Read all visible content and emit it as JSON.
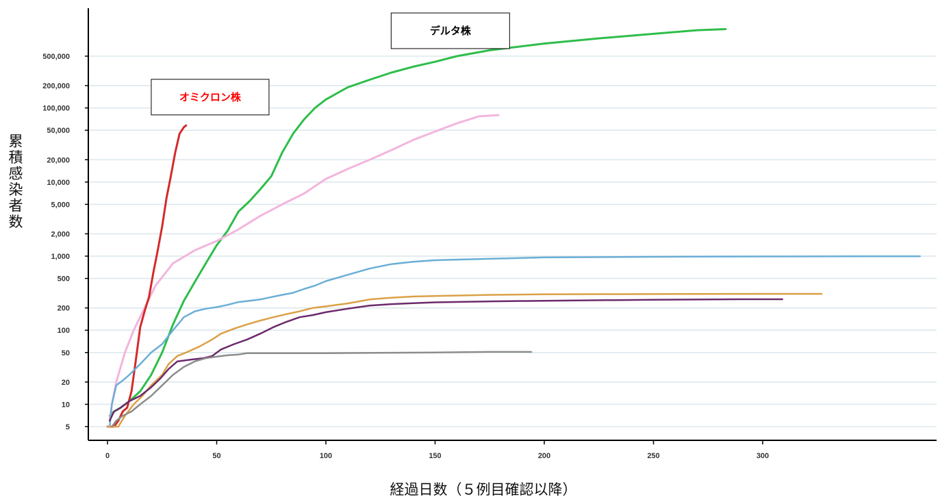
{
  "chart_data": {
    "type": "line",
    "xlabel": "経過日数（５例目確認以降）",
    "ylabel": "累積感染者数",
    "y_scale": "log",
    "xlim": [
      0,
      380
    ],
    "ylim": [
      3.5,
      1600000
    ],
    "grid": "horizontal",
    "x_ticks": [
      0,
      50,
      100,
      150,
      200,
      250,
      300
    ],
    "x_tick_labels": [
      "0",
      "50",
      "100",
      "150",
      "200",
      "250",
      "300"
    ],
    "y_ticks": [
      5,
      10,
      20,
      50,
      100,
      200,
      500,
      1000,
      2000,
      5000,
      10000,
      20000,
      50000,
      100000,
      200000,
      500000
    ],
    "y_tick_labels": [
      "5",
      "10",
      "20",
      "50",
      "100",
      "200",
      "500",
      "1,000",
      "2,000",
      "5,000",
      "10,000",
      "20,000",
      "50,000",
      "100,000",
      "200,000",
      "500,000"
    ],
    "annotations": [
      {
        "id": "delta",
        "text": "デルタ株",
        "color": "#000000",
        "anchor_x": 157,
        "anchor_y": 1100000
      },
      {
        "id": "omicron",
        "text": "オミクロン株",
        "color": "#ff0000",
        "anchor_x": 47,
        "anchor_y": 140000
      }
    ],
    "series": [
      {
        "color": "#2ebd4a",
        "width": 3,
        "points": [
          [
            1,
            7
          ],
          [
            3,
            8
          ],
          [
            6,
            9
          ],
          [
            10,
            11
          ],
          [
            15,
            15
          ],
          [
            20,
            25
          ],
          [
            25,
            50
          ],
          [
            30,
            120
          ],
          [
            35,
            250
          ],
          [
            40,
            450
          ],
          [
            45,
            800
          ],
          [
            50,
            1400
          ],
          [
            55,
            2200
          ],
          [
            60,
            4000
          ],
          [
            65,
            5500
          ],
          [
            70,
            8000
          ],
          [
            75,
            12000
          ],
          [
            80,
            25000
          ],
          [
            85,
            45000
          ],
          [
            90,
            70000
          ],
          [
            95,
            100000
          ],
          [
            100,
            130000
          ],
          [
            110,
            190000
          ],
          [
            120,
            240000
          ],
          [
            130,
            300000
          ],
          [
            140,
            360000
          ],
          [
            150,
            420000
          ],
          [
            160,
            500000
          ],
          [
            175,
            600000
          ],
          [
            200,
            740000
          ],
          [
            225,
            870000
          ],
          [
            250,
            1000000
          ],
          [
            270,
            1120000
          ],
          [
            283,
            1160000
          ]
        ]
      },
      {
        "color": "#f2b5dd",
        "width": 3,
        "points": [
          [
            1,
            6
          ],
          [
            2,
            10
          ],
          [
            4,
            20
          ],
          [
            8,
            50
          ],
          [
            12,
            100
          ],
          [
            17,
            200
          ],
          [
            22,
            400
          ],
          [
            30,
            800
          ],
          [
            40,
            1200
          ],
          [
            50,
            1600
          ],
          [
            60,
            2300
          ],
          [
            70,
            3500
          ],
          [
            80,
            5000
          ],
          [
            90,
            7000
          ],
          [
            100,
            11000
          ],
          [
            110,
            15000
          ],
          [
            120,
            20000
          ],
          [
            130,
            27000
          ],
          [
            140,
            37000
          ],
          [
            150,
            48000
          ],
          [
            160,
            62000
          ],
          [
            170,
            77000
          ],
          [
            179,
            80000
          ]
        ]
      },
      {
        "color": "#d32a2a",
        "width": 3,
        "points": [
          [
            0,
            5
          ],
          [
            3,
            5
          ],
          [
            5,
            6
          ],
          [
            7,
            8
          ],
          [
            9,
            9
          ],
          [
            11,
            15
          ],
          [
            13,
            40
          ],
          [
            15,
            110
          ],
          [
            17,
            180
          ],
          [
            19,
            280
          ],
          [
            21,
            600
          ],
          [
            23,
            1200
          ],
          [
            25,
            2500
          ],
          [
            27,
            6000
          ],
          [
            29,
            12000
          ],
          [
            31,
            25000
          ],
          [
            33,
            45000
          ],
          [
            35,
            55000
          ],
          [
            36,
            58000
          ]
        ]
      },
      {
        "color": "#6aaed6",
        "width": 2.5,
        "points": [
          [
            1,
            5
          ],
          [
            2,
            10
          ],
          [
            4,
            18
          ],
          [
            7,
            21
          ],
          [
            10,
            25
          ],
          [
            15,
            35
          ],
          [
            20,
            50
          ],
          [
            25,
            65
          ],
          [
            30,
            100
          ],
          [
            35,
            150
          ],
          [
            40,
            180
          ],
          [
            45,
            195
          ],
          [
            50,
            205
          ],
          [
            55,
            220
          ],
          [
            60,
            240
          ],
          [
            65,
            250
          ],
          [
            70,
            260
          ],
          [
            75,
            280
          ],
          [
            80,
            300
          ],
          [
            85,
            320
          ],
          [
            90,
            360
          ],
          [
            95,
            400
          ],
          [
            100,
            460
          ],
          [
            110,
            560
          ],
          [
            120,
            680
          ],
          [
            130,
            780
          ],
          [
            140,
            840
          ],
          [
            150,
            880
          ],
          [
            175,
            920
          ],
          [
            200,
            960
          ],
          [
            250,
            980
          ],
          [
            300,
            990
          ],
          [
            350,
            995
          ],
          [
            372,
            995
          ]
        ]
      },
      {
        "color": "#dba046",
        "width": 2.5,
        "points": [
          [
            0,
            5
          ],
          [
            3,
            5
          ],
          [
            5,
            5
          ],
          [
            8,
            7
          ],
          [
            12,
            10
          ],
          [
            16,
            13
          ],
          [
            20,
            18
          ],
          [
            25,
            25
          ],
          [
            28,
            35
          ],
          [
            32,
            45
          ],
          [
            36,
            50
          ],
          [
            42,
            60
          ],
          [
            48,
            75
          ],
          [
            52,
            90
          ],
          [
            58,
            105
          ],
          [
            64,
            120
          ],
          [
            70,
            135
          ],
          [
            76,
            150
          ],
          [
            82,
            165
          ],
          [
            88,
            180
          ],
          [
            94,
            200
          ],
          [
            100,
            210
          ],
          [
            110,
            230
          ],
          [
            120,
            260
          ],
          [
            130,
            275
          ],
          [
            140,
            285
          ],
          [
            150,
            290
          ],
          [
            175,
            300
          ],
          [
            200,
            305
          ],
          [
            250,
            308
          ],
          [
            300,
            310
          ],
          [
            327,
            310
          ]
        ]
      },
      {
        "color": "#6b2a6b",
        "width": 2.5,
        "points": [
          [
            1,
            6
          ],
          [
            3,
            8
          ],
          [
            6,
            9
          ],
          [
            10,
            11
          ],
          [
            15,
            13
          ],
          [
            20,
            17
          ],
          [
            24,
            22
          ],
          [
            28,
            30
          ],
          [
            32,
            38
          ],
          [
            38,
            40
          ],
          [
            44,
            42
          ],
          [
            48,
            45
          ],
          [
            52,
            55
          ],
          [
            58,
            65
          ],
          [
            64,
            75
          ],
          [
            70,
            90
          ],
          [
            76,
            110
          ],
          [
            82,
            130
          ],
          [
            88,
            150
          ],
          [
            94,
            160
          ],
          [
            100,
            175
          ],
          [
            110,
            195
          ],
          [
            120,
            215
          ],
          [
            130,
            225
          ],
          [
            140,
            232
          ],
          [
            150,
            238
          ],
          [
            175,
            245
          ],
          [
            200,
            250
          ],
          [
            250,
            258
          ],
          [
            290,
            262
          ],
          [
            309,
            262
          ]
        ]
      },
      {
        "color": "#8c8c8c",
        "width": 2.5,
        "points": [
          [
            2,
            5
          ],
          [
            4,
            6
          ],
          [
            7,
            7
          ],
          [
            11,
            8
          ],
          [
            15,
            10
          ],
          [
            20,
            13
          ],
          [
            25,
            18
          ],
          [
            30,
            25
          ],
          [
            35,
            32
          ],
          [
            40,
            38
          ],
          [
            45,
            42
          ],
          [
            50,
            44
          ],
          [
            55,
            46
          ],
          [
            60,
            47
          ],
          [
            64,
            49
          ],
          [
            70,
            49
          ],
          [
            80,
            49
          ],
          [
            100,
            49
          ],
          [
            150,
            50
          ],
          [
            175,
            51
          ],
          [
            194,
            51
          ]
        ]
      }
    ]
  }
}
